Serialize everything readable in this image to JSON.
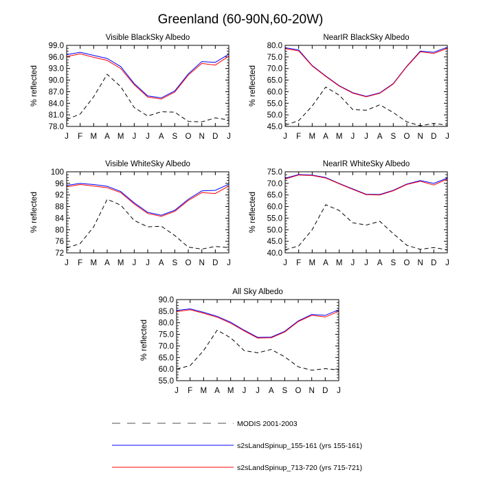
{
  "title": "Greenland (60-90N,60-20W)",
  "legend": [
    {
      "label": "MODIS 2001-2003",
      "style": "dashed",
      "color": "#888888"
    },
    {
      "label": "s2sLandSpinup_155-161 (yrs 155-161)",
      "style": "solid",
      "color": "#0000ff"
    },
    {
      "label": "s2sLandSpinup_713-720 (yrs 715-721)",
      "style": "solid",
      "color": "#ff0000"
    }
  ],
  "chart_data": [
    {
      "type": "line",
      "title": "Visible BlackSky Albedo",
      "ylabel": "% reflected",
      "categories": [
        "J",
        "F",
        "M",
        "A",
        "M",
        "J",
        "J",
        "A",
        "S",
        "O",
        "N",
        "D",
        "J"
      ],
      "ylim": [
        78.0,
        99.0
      ],
      "yticks": [
        "78.0",
        "81.0",
        "84.0",
        "87.0",
        "90.0",
        "93.0",
        "96.0",
        "99.0"
      ],
      "series": [
        {
          "name": "MODIS 2001-2003",
          "style": "dashed",
          "color": "#000000",
          "values": [
            79.8,
            81.2,
            85.7,
            91.5,
            88.3,
            82.9,
            80.7,
            81.8,
            81.7,
            79.3,
            79.2,
            80.2,
            79.7
          ]
        },
        {
          "name": "s2sLandSpinup_155-161 (yrs 155-161)",
          "style": "solid",
          "color": "#0000ff",
          "values": [
            96.6,
            97.2,
            96.4,
            95.6,
            93.5,
            89.1,
            85.9,
            85.4,
            87.2,
            91.6,
            94.8,
            94.6,
            96.7
          ]
        },
        {
          "name": "s2sLandSpinup_713-720 (yrs 715-721)",
          "style": "solid",
          "color": "#ff0000",
          "values": [
            96.1,
            96.8,
            95.9,
            95.1,
            93.0,
            88.8,
            85.6,
            85.1,
            86.9,
            91.3,
            94.3,
            93.9,
            96.2
          ]
        }
      ]
    },
    {
      "type": "line",
      "title": "NearIR BlackSky Albedo",
      "ylabel": "% reflected",
      "categories": [
        "J",
        "F",
        "M",
        "A",
        "M",
        "J",
        "J",
        "A",
        "S",
        "O",
        "N",
        "D",
        "J"
      ],
      "ylim": [
        45.0,
        80.0
      ],
      "yticks": [
        "45.0",
        "50.0",
        "55.0",
        "60.0",
        "65.0",
        "70.0",
        "75.0",
        "80.0"
      ],
      "series": [
        {
          "name": "MODIS 2001-2003",
          "style": "dashed",
          "color": "#000000",
          "values": [
            45.5,
            47.5,
            53.8,
            62.0,
            58.5,
            52.3,
            52.0,
            54.3,
            51.0,
            47.0,
            45.3,
            46.3,
            45.5
          ]
        },
        {
          "name": "s2sLandSpinup_155-161 (yrs 155-161)",
          "style": "solid",
          "color": "#0000ff",
          "values": [
            79.0,
            78.0,
            71.3,
            66.8,
            62.6,
            59.6,
            58.0,
            59.5,
            63.5,
            71.0,
            77.5,
            77.0,
            79.2
          ]
        },
        {
          "name": "s2sLandSpinup_713-720 (yrs 715-721)",
          "style": "solid",
          "color": "#ff0000",
          "values": [
            78.6,
            77.6,
            71.1,
            66.6,
            62.4,
            59.4,
            57.8,
            59.3,
            63.3,
            70.8,
            77.2,
            76.5,
            78.7
          ]
        }
      ]
    },
    {
      "type": "line",
      "title": "Visible WhiteSky Albedo",
      "ylabel": "% reflected",
      "categories": [
        "J",
        "F",
        "M",
        "A",
        "M",
        "J",
        "J",
        "A",
        "S",
        "O",
        "N",
        "D",
        "J"
      ],
      "ylim": [
        72,
        100
      ],
      "yticks": [
        "72",
        "76",
        "80",
        "84",
        "88",
        "92",
        "96",
        "100"
      ],
      "series": [
        {
          "name": "MODIS 2001-2003",
          "style": "dashed",
          "color": "#000000",
          "values": [
            73.7,
            75.2,
            81.0,
            90.5,
            88.5,
            83.2,
            81.0,
            81.2,
            78.0,
            74.0,
            73.3,
            74.2,
            73.8
          ]
        },
        {
          "name": "s2sLandSpinup_155-161 (yrs 155-161)",
          "style": "solid",
          "color": "#0000ff",
          "values": [
            95.3,
            96.0,
            95.6,
            95.0,
            93.2,
            89.3,
            86.0,
            85.0,
            86.7,
            90.5,
            93.4,
            93.6,
            95.7
          ]
        },
        {
          "name": "s2sLandSpinup_713-720 (yrs 715-721)",
          "style": "solid",
          "color": "#ff0000",
          "values": [
            94.8,
            95.6,
            95.1,
            94.5,
            92.8,
            88.9,
            85.6,
            84.6,
            86.3,
            90.1,
            92.8,
            92.5,
            95.1
          ]
        }
      ]
    },
    {
      "type": "line",
      "title": "NearIR WhiteSky Albedo",
      "ylabel": "% reflected",
      "categories": [
        "J",
        "F",
        "M",
        "A",
        "M",
        "J",
        "J",
        "A",
        "S",
        "O",
        "N",
        "D",
        "J"
      ],
      "ylim": [
        40.0,
        75.0
      ],
      "yticks": [
        "40.0",
        "45.0",
        "50.0",
        "55.0",
        "60.0",
        "65.0",
        "70.0",
        "75.0"
      ],
      "series": [
        {
          "name": "MODIS 2001-2003",
          "style": "dashed",
          "color": "#000000",
          "values": [
            41.3,
            43.0,
            50.0,
            60.8,
            58.3,
            53.0,
            52.0,
            53.6,
            48.3,
            43.3,
            41.5,
            42.3,
            41.3
          ]
        },
        {
          "name": "s2sLandSpinup_155-161 (yrs 155-161)",
          "style": "solid",
          "color": "#0000ff",
          "values": [
            72.2,
            73.8,
            73.6,
            72.5,
            70.0,
            67.6,
            65.3,
            65.2,
            67.0,
            69.7,
            71.2,
            70.0,
            72.3
          ]
        },
        {
          "name": "s2sLandSpinup_713-720 (yrs 715-721)",
          "style": "solid",
          "color": "#ff0000",
          "values": [
            71.9,
            73.6,
            73.4,
            72.3,
            69.8,
            67.4,
            65.1,
            65.0,
            66.8,
            69.5,
            70.9,
            69.3,
            71.9
          ]
        }
      ]
    },
    {
      "type": "line",
      "title": "All Sky Albedo",
      "ylabel": "% reflected",
      "categories": [
        "J",
        "F",
        "M",
        "A",
        "M",
        "J",
        "J",
        "A",
        "S",
        "O",
        "N",
        "D",
        "J"
      ],
      "ylim": [
        55.0,
        90.0
      ],
      "yticks": [
        "55.0",
        "60.0",
        "65.0",
        "70.0",
        "75.0",
        "80.0",
        "85.0",
        "90.0"
      ],
      "series": [
        {
          "name": "MODIS 2001-2003",
          "style": "dashed",
          "color": "#000000",
          "values": [
            60.0,
            61.5,
            68.0,
            76.8,
            73.5,
            68.0,
            67.0,
            68.5,
            65.3,
            61.0,
            59.5,
            60.2,
            59.6
          ]
        },
        {
          "name": "s2sLandSpinup_155-161 (yrs 155-161)",
          "style": "solid",
          "color": "#0000ff",
          "values": [
            85.3,
            86.0,
            84.5,
            82.8,
            80.2,
            76.8,
            73.7,
            73.8,
            76.3,
            80.8,
            83.6,
            83.2,
            85.6
          ]
        },
        {
          "name": "s2sLandSpinup_713-720 (yrs 715-721)",
          "style": "solid",
          "color": "#ff0000",
          "values": [
            84.8,
            85.6,
            84.1,
            82.4,
            79.8,
            76.5,
            73.4,
            73.5,
            76.0,
            80.5,
            83.2,
            82.5,
            84.9
          ]
        }
      ]
    }
  ]
}
